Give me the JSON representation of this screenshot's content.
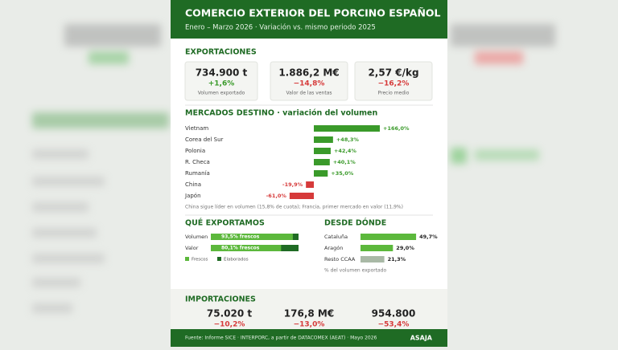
{
  "header": {
    "title": "COMERCIO EXTERIOR DEL PORCINO ESPAÑOL",
    "subtitle": "Enero – Marzo 2026 · Variación vs. mismo periodo 2025"
  },
  "exports": {
    "title": "EXPORTACIONES",
    "cards": [
      {
        "value": "734.900 t",
        "change": "+1,6%",
        "label": "Volumen exportado"
      },
      {
        "value": "1.886,2 M€",
        "change": "−14,8%",
        "label": "Valor de las ventas"
      },
      {
        "value": "2,57 €/kg",
        "change": "−16,2%",
        "label": "Precio medio"
      }
    ]
  },
  "markets": {
    "title": "MERCADOS DESTINO · variación del volumen",
    "rows": [
      {
        "name": "Vietnam",
        "value": 166.0,
        "label": "+166,0%"
      },
      {
        "name": "Corea del Sur",
        "value": 48.3,
        "label": "+48,3%"
      },
      {
        "name": "Polonia",
        "value": 42.4,
        "label": "+42,4%"
      },
      {
        "name": "R. Checa",
        "value": 40.1,
        "label": "+40,1%"
      },
      {
        "name": "Rumanía",
        "value": 35.0,
        "label": "+35,0%"
      },
      {
        "name": "China",
        "value": -19.9,
        "label": "-19,9%"
      },
      {
        "name": "Japón",
        "value": -61.0,
        "label": "-61,0%"
      }
    ],
    "note": "China sigue líder en volumen (15,8% de cuota); Francia, primer mercado en valor (11,9%)"
  },
  "mix": {
    "title": "QUÉ EXPORTAMOS",
    "rows": [
      {
        "name": "Volumen",
        "value": 93.5,
        "label": "93,5% frescos"
      },
      {
        "name": "Valor",
        "value": 80.1,
        "label": "80,1% frescos"
      }
    ],
    "legend": [
      "Frescos",
      "Elaborados"
    ]
  },
  "origin": {
    "title": "DESDE DÓNDE",
    "rows": [
      {
        "name": "Cataluña",
        "value": 49.7,
        "label": "49,7%"
      },
      {
        "name": "Aragón",
        "value": 29.0,
        "label": "29,0%"
      },
      {
        "name": "Resto CCAA",
        "value": 21.3,
        "label": "21,3%"
      }
    ],
    "note": "% del volumen exportado"
  },
  "imports": {
    "title": "IMPORTACIONES",
    "cards": [
      {
        "value": "75.020 t",
        "change": "−10,2%"
      },
      {
        "value": "176,8 M€",
        "change": "−13,0%"
      },
      {
        "value": "954.800",
        "change": "−53,4%"
      }
    ]
  },
  "footer": {
    "source": "Fuente: Informe SICE · INTERPORC, a partir de DATACOMEX (AEAT) · Mayo 2026",
    "brand": "ASAJA"
  }
}
